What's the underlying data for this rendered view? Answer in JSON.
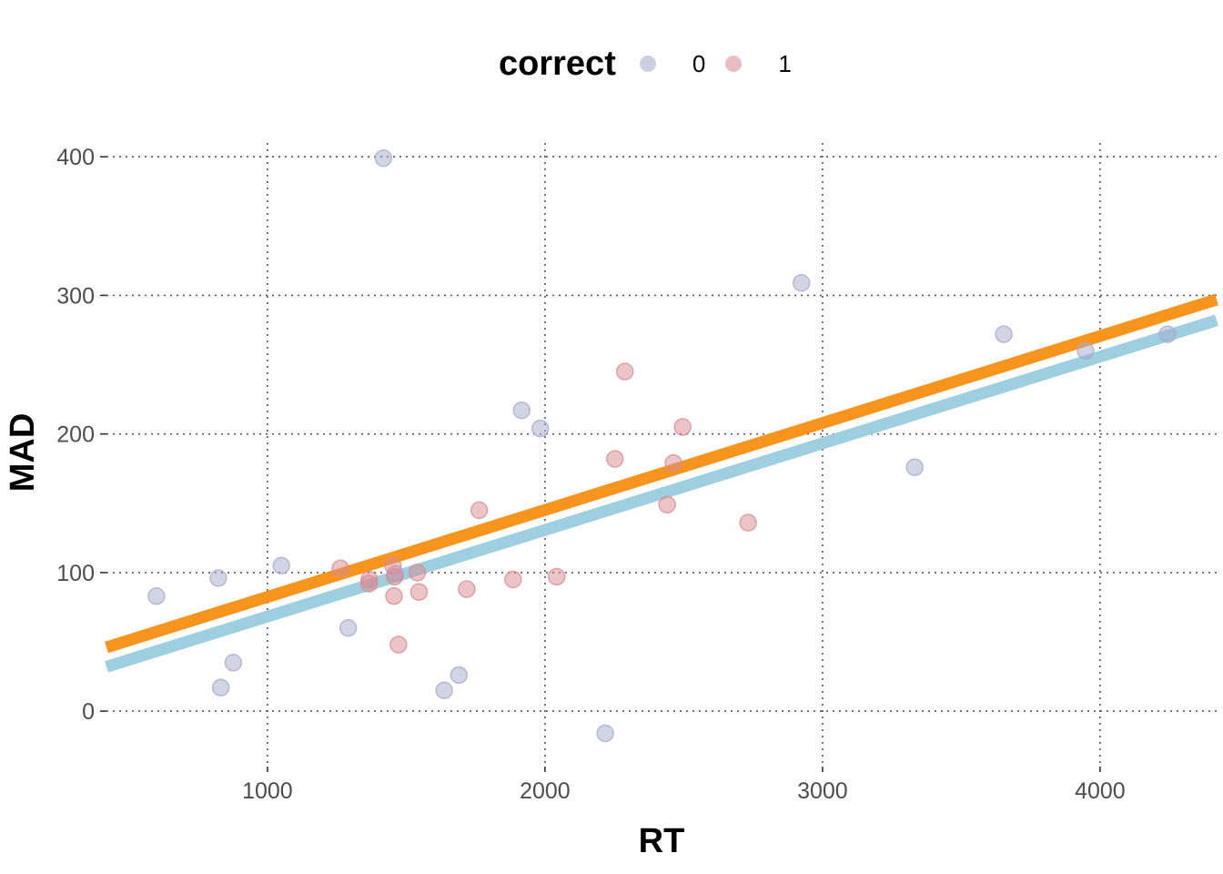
{
  "legend": {
    "title": "correct",
    "items": [
      {
        "label": "0",
        "color": "#A3A9CB"
      },
      {
        "label": "1",
        "color": "#D98A8F"
      }
    ]
  },
  "chart_data": {
    "type": "scatter",
    "xlabel": "RT",
    "ylabel": "MAD",
    "xlim": [
      420,
      4420
    ],
    "ylim": [
      -40,
      410
    ],
    "xticks": [
      1000,
      2000,
      3000,
      4000
    ],
    "yticks": [
      0,
      100,
      200,
      300,
      400
    ],
    "grid": "dotted",
    "legend_position": "top",
    "series": [
      {
        "name": "0",
        "color": "#A3A9CB",
        "points": [
          [
            600,
            83
          ],
          [
            823,
            96
          ],
          [
            832,
            17
          ],
          [
            877,
            35
          ],
          [
            1050,
            105
          ],
          [
            1291,
            60
          ],
          [
            1418,
            399
          ],
          [
            1461,
            99
          ],
          [
            1637,
            15
          ],
          [
            1690,
            26
          ],
          [
            1916,
            217
          ],
          [
            1983,
            204
          ],
          [
            2217,
            -16
          ],
          [
            2924,
            309
          ],
          [
            3332,
            176
          ],
          [
            3653,
            272
          ],
          [
            3948,
            260
          ],
          [
            4243,
            272
          ]
        ]
      },
      {
        "name": "1",
        "color": "#D98A8F",
        "points": [
          [
            1263,
            103
          ],
          [
            1366,
            92
          ],
          [
            1367,
            95
          ],
          [
            1452,
            105
          ],
          [
            1456,
            83
          ],
          [
            1458,
            97
          ],
          [
            1472,
            48
          ],
          [
            1540,
            100
          ],
          [
            1546,
            86
          ],
          [
            1718,
            88
          ],
          [
            1763,
            145
          ],
          [
            1885,
            95
          ],
          [
            2042,
            97
          ],
          [
            2252,
            182
          ],
          [
            2288,
            245
          ],
          [
            2440,
            149
          ],
          [
            2463,
            179
          ],
          [
            2496,
            205
          ],
          [
            2732,
            136
          ]
        ]
      }
    ],
    "fit_lines": [
      {
        "series": "0",
        "color": "#9ECFE0",
        "x": [
          420,
          4420
        ],
        "y": [
          32,
          282
        ]
      },
      {
        "series": "1",
        "color": "#F7941D",
        "x": [
          420,
          4420
        ],
        "y": [
          46,
          297
        ]
      }
    ]
  }
}
